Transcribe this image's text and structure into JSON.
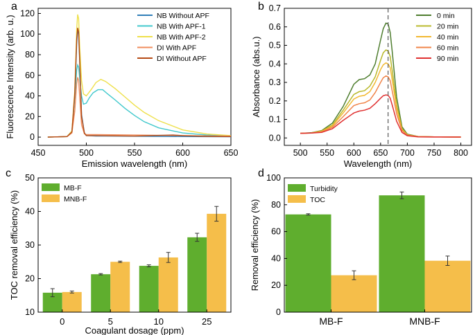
{
  "chart_data": [
    {
      "id": "a",
      "type": "line",
      "panel_label": "a",
      "xlabel": "Emission wavelength (nm)",
      "ylabel": "Fluorescence Intensity (arb. u.)",
      "xlim": [
        450,
        650
      ],
      "ylim": [
        -8,
        125
      ],
      "xticks": [
        450,
        500,
        550,
        600,
        650
      ],
      "yticks": [
        0,
        20,
        40,
        60,
        80,
        100,
        120
      ],
      "legend_position": "top-right",
      "series": [
        {
          "name": "NB Without APF",
          "color": "#2f7fb8",
          "x": [
            460,
            480,
            485,
            488,
            490,
            491,
            492,
            493,
            495,
            498,
            500,
            510,
            520,
            560,
            600,
            650
          ],
          "y": [
            0,
            0.5,
            5,
            40,
            90,
            104,
            100,
            75,
            22,
            4,
            1.5,
            1,
            1,
            0.8,
            0.5,
            0.3
          ]
        },
        {
          "name": "NB With APF-1",
          "color": "#3fc8cc",
          "x": [
            460,
            480,
            485,
            488,
            490,
            491,
            492,
            493,
            495,
            497,
            500,
            503,
            507,
            512,
            517,
            522,
            530,
            540,
            550,
            560,
            575,
            600,
            625,
            650
          ],
          "y": [
            0,
            0.5,
            6,
            38,
            65,
            70,
            68,
            58,
            40,
            32,
            33,
            38,
            43,
            46,
            46,
            42,
            36,
            28,
            21,
            15,
            9,
            4,
            2,
            1
          ]
        },
        {
          "name": "NB With APF-2",
          "color": "#eee04a",
          "x": [
            460,
            480,
            485,
            488,
            490,
            491,
            492,
            493,
            495,
            497,
            500,
            505,
            510,
            515,
            520,
            530,
            540,
            550,
            560,
            575,
            600,
            625,
            650
          ],
          "y": [
            0,
            0.5,
            6,
            45,
            105,
            119,
            115,
            90,
            55,
            42,
            40,
            46,
            53,
            56,
            54,
            47,
            39,
            31,
            24,
            16,
            7,
            3,
            1.5
          ]
        },
        {
          "name": "DI With APF",
          "color": "#f08c5c",
          "x": [
            460,
            480,
            485,
            488,
            490,
            491,
            492,
            493,
            495,
            498,
            500,
            510,
            550,
            600,
            650
          ],
          "y": [
            0,
            0.5,
            4,
            25,
            52,
            58,
            55,
            40,
            12,
            3,
            2.5,
            2.5,
            2,
            1.5,
            1
          ]
        },
        {
          "name": "DI Without APF",
          "color": "#b54a14",
          "x": [
            460,
            480,
            485,
            488,
            490,
            491,
            492,
            493,
            495,
            498,
            500,
            510,
            550,
            590,
            600,
            620,
            650
          ],
          "y": [
            0,
            0.5,
            5,
            42,
            95,
            106,
            102,
            78,
            20,
            4,
            1.5,
            1.5,
            1,
            2,
            1.5,
            0.8,
            0.5
          ]
        }
      ]
    },
    {
      "id": "b",
      "type": "line",
      "panel_label": "b",
      "xlabel": "Wavelength (nm)",
      "ylabel": "Absorbance (abs.u.)",
      "xlim": [
        470,
        820
      ],
      "ylim": [
        -0.04,
        0.7
      ],
      "xticks": [
        500,
        550,
        600,
        650,
        700,
        750,
        800
      ],
      "yticks": [
        0.0,
        0.1,
        0.2,
        0.3,
        0.4,
        0.5,
        0.6,
        0.7
      ],
      "reference_line_x": 664,
      "legend_position": "top-right",
      "x": [
        500,
        520,
        540,
        560,
        580,
        600,
        610,
        620,
        630,
        640,
        650,
        655,
        660,
        664,
        668,
        672,
        680,
        690,
        700,
        720,
        750,
        800
      ],
      "series": [
        {
          "name": "0 min",
          "color": "#4e7d2e",
          "values": [
            0.025,
            0.028,
            0.04,
            0.08,
            0.17,
            0.29,
            0.315,
            0.32,
            0.34,
            0.4,
            0.53,
            0.59,
            0.62,
            0.615,
            0.57,
            0.46,
            0.22,
            0.06,
            0.02,
            0.008,
            0.006,
            0.005
          ]
        },
        {
          "name": "20 min",
          "color": "#b8b82a",
          "values": [
            0.025,
            0.027,
            0.038,
            0.07,
            0.15,
            0.235,
            0.25,
            0.255,
            0.28,
            0.33,
            0.42,
            0.46,
            0.475,
            0.47,
            0.44,
            0.36,
            0.18,
            0.05,
            0.018,
            0.008,
            0.006,
            0.005
          ]
        },
        {
          "name": "40 min",
          "color": "#f2b830",
          "values": [
            0.025,
            0.027,
            0.036,
            0.065,
            0.135,
            0.21,
            0.225,
            0.23,
            0.25,
            0.3,
            0.37,
            0.395,
            0.405,
            0.4,
            0.38,
            0.31,
            0.16,
            0.045,
            0.016,
            0.007,
            0.006,
            0.005
          ]
        },
        {
          "name": "60 min",
          "color": "#f08448",
          "values": [
            0.025,
            0.026,
            0.033,
            0.058,
            0.115,
            0.175,
            0.185,
            0.19,
            0.205,
            0.245,
            0.3,
            0.325,
            0.335,
            0.33,
            0.31,
            0.25,
            0.13,
            0.04,
            0.015,
            0.007,
            0.006,
            0.005
          ]
        },
        {
          "name": "90 min",
          "color": "#e03030",
          "values": [
            0.025,
            0.026,
            0.03,
            0.05,
            0.095,
            0.135,
            0.145,
            0.15,
            0.16,
            0.185,
            0.215,
            0.228,
            0.232,
            0.23,
            0.215,
            0.175,
            0.09,
            0.03,
            0.012,
            0.006,
            0.005,
            0.005
          ]
        }
      ]
    },
    {
      "id": "c",
      "type": "bar",
      "panel_label": "c",
      "xlabel": "Coagulant dosage (ppm)",
      "ylabel": "TOC removal efficiency (%)",
      "categories": [
        "0",
        "5",
        "10",
        "25"
      ],
      "ylim": [
        10,
        50
      ],
      "yticks": [
        10,
        20,
        30,
        40,
        50
      ],
      "legend_position": "top-left",
      "series": [
        {
          "name": "MB-F",
          "color": "#5fae2e",
          "values": [
            15.8,
            21.3,
            23.8,
            32.3
          ],
          "errors": [
            1.2,
            0.2,
            0.3,
            1.2
          ]
        },
        {
          "name": "MNB-F",
          "color": "#f5be4a",
          "values": [
            16.0,
            25.0,
            26.3,
            39.3
          ],
          "errors": [
            0.3,
            0.2,
            1.5,
            2.2
          ]
        }
      ]
    },
    {
      "id": "d",
      "type": "bar",
      "panel_label": "d",
      "xlabel": "",
      "ylabel": "Removal efficiency (%)",
      "categories": [
        "MB-F",
        "MNB-F"
      ],
      "ylim": [
        0,
        100
      ],
      "yticks": [
        0,
        20,
        40,
        60,
        80,
        100
      ],
      "legend_position": "top-left",
      "series": [
        {
          "name": "Turbidity",
          "color": "#5fae2e",
          "values": [
            72.8,
            87.0
          ],
          "errors": [
            0.5,
            2.5
          ]
        },
        {
          "name": "TOC",
          "color": "#f5be4a",
          "values": [
            27.5,
            38.3
          ],
          "errors": [
            3.3,
            3.5
          ]
        }
      ]
    }
  ]
}
